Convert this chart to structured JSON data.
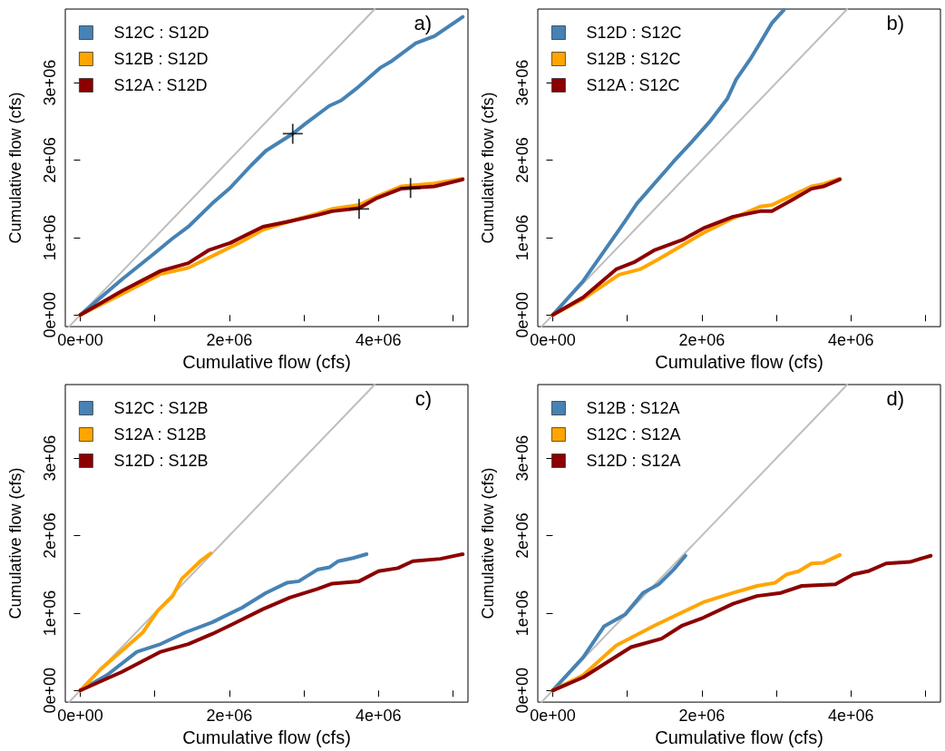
{
  "chart_data": [
    {
      "type": "line",
      "xlabel": "Cumulative flow (cfs)",
      "ylabel": "Cumulative flow (cfs)",
      "annotations": [
        "a)"
      ],
      "xlim": [
        -200000,
        5200000
      ],
      "ylim": [
        -150000,
        3950000
      ],
      "xticks": [
        {
          "value": 0,
          "label": "0e+00"
        },
        {
          "value": 1000000,
          "label": null
        },
        {
          "value": 2000000,
          "label": "2e+06"
        },
        {
          "value": 3000000,
          "label": null
        },
        {
          "value": 4000000,
          "label": "4e+06"
        },
        {
          "value": 5000000,
          "label": null
        }
      ],
      "yticks": [
        {
          "value": 0,
          "label": "0e+00"
        },
        {
          "value": 1000000,
          "label": "1e+06"
        },
        {
          "value": 2000000,
          "label": "2e+06"
        },
        {
          "value": 3000000,
          "label": "3e+06"
        }
      ],
      "legend": "top left",
      "marker": "none",
      "grid": false,
      "series": [
        {
          "color": "#bebebe",
          "x": [
            -150000,
            3950000
          ],
          "values": [
            -150000,
            3950000
          ]
        },
        {
          "name": "S12C : S12D",
          "color": "#4682b4",
          "x": [
            0,
            560000,
            1000000,
            1240000,
            1450000,
            1770000,
            2010000,
            2290000,
            2490000,
            2850000,
            3020000,
            3340000,
            3500000,
            3700000,
            4020000,
            4180000,
            4500000,
            4750000,
            5130000
          ],
          "values": [
            0,
            460000,
            800000,
            990000,
            1140000,
            1440000,
            1640000,
            1930000,
            2120000,
            2340000,
            2470000,
            2700000,
            2770000,
            2920000,
            3190000,
            3280000,
            3510000,
            3600000,
            3850000
          ]
        },
        {
          "name": "S12B : S12D",
          "color": "#ffa500",
          "x": [
            0,
            560000,
            1080000,
            1450000,
            1770000,
            2170000,
            2450000,
            2810000,
            3180000,
            3380000,
            3740000,
            3980000,
            4300000,
            4750000,
            5130000
          ],
          "values": [
            0,
            270000,
            530000,
            610000,
            760000,
            950000,
            1100000,
            1210000,
            1310000,
            1370000,
            1420000,
            1530000,
            1660000,
            1700000,
            1760000
          ]
        },
        {
          "name": "S12A : S12D",
          "color": "#8b0000",
          "x": [
            0,
            560000,
            1080000,
            1450000,
            1730000,
            2010000,
            2450000,
            2810000,
            3180000,
            3380000,
            3740000,
            3980000,
            4300000,
            4750000,
            5130000
          ],
          "values": [
            0,
            310000,
            570000,
            670000,
            840000,
            930000,
            1140000,
            1210000,
            1290000,
            1340000,
            1380000,
            1510000,
            1630000,
            1660000,
            1750000
          ]
        },
        {
          "type": "scatter",
          "marker": "cross",
          "color": "#000000",
          "x": [
            2850000,
            3740000,
            4430000
          ],
          "values": [
            2340000,
            1370000,
            1640000
          ]
        }
      ]
    },
    {
      "type": "line",
      "xlabel": "Cumulative flow (cfs)",
      "ylabel": "Cumulative flow (cfs)",
      "annotations": [
        "b)"
      ],
      "xlim": [
        -200000,
        5200000
      ],
      "ylim": [
        -150000,
        3950000
      ],
      "xticks": [
        {
          "value": 0,
          "label": "0e+00"
        },
        {
          "value": 1000000,
          "label": null
        },
        {
          "value": 2000000,
          "label": "2e+06"
        },
        {
          "value": 3000000,
          "label": null
        },
        {
          "value": 4000000,
          "label": "4e+06"
        },
        {
          "value": 5000000,
          "label": null
        }
      ],
      "yticks": [
        {
          "value": 0,
          "label": "0e+00"
        },
        {
          "value": 1000000,
          "label": "1e+06"
        },
        {
          "value": 2000000,
          "label": "2e+06"
        },
        {
          "value": 3000000,
          "label": "3e+06"
        }
      ],
      "legend": "top left",
      "marker": "none",
      "grid": false,
      "series": [
        {
          "color": "#bebebe",
          "x": [
            -150000,
            3950000
          ],
          "values": [
            -150000,
            3950000
          ]
        },
        {
          "name": "S12D : S12C",
          "color": "#4682b4",
          "x": [
            0,
            410000,
            970000,
            1130000,
            1620000,
            1860000,
            2100000,
            2340000,
            2460000,
            2660000,
            2780000,
            2940000,
            3100000
          ],
          "values": [
            0,
            440000,
            1210000,
            1440000,
            1980000,
            2230000,
            2490000,
            2790000,
            3040000,
            3320000,
            3510000,
            3770000,
            3940000
          ]
        },
        {
          "name": "S12B : S12C",
          "color": "#ffa500",
          "x": [
            0,
            410000,
            890000,
            1170000,
            1420000,
            2020000,
            2420000,
            2780000,
            2940000,
            3180000,
            3470000,
            3630000,
            3850000
          ],
          "values": [
            0,
            210000,
            520000,
            590000,
            720000,
            1060000,
            1250000,
            1400000,
            1420000,
            1530000,
            1660000,
            1690000,
            1760000
          ]
        },
        {
          "name": "S12A : S12C",
          "color": "#8b0000",
          "x": [
            0,
            410000,
            850000,
            1090000,
            1370000,
            1740000,
            2020000,
            2420000,
            2780000,
            2940000,
            3220000,
            3470000,
            3630000,
            3850000
          ],
          "values": [
            0,
            230000,
            590000,
            680000,
            840000,
            970000,
            1120000,
            1270000,
            1340000,
            1340000,
            1490000,
            1630000,
            1660000,
            1750000
          ]
        }
      ]
    },
    {
      "type": "line",
      "xlabel": "Cumulative flow (cfs)",
      "ylabel": "Cumulative flow (cfs)",
      "annotations": [
        "c)"
      ],
      "xlim": [
        -200000,
        5200000
      ],
      "ylim": [
        -150000,
        3950000
      ],
      "xticks": [
        {
          "value": 0,
          "label": "0e+00"
        },
        {
          "value": 1000000,
          "label": null
        },
        {
          "value": 2000000,
          "label": "2e+06"
        },
        {
          "value": 3000000,
          "label": null
        },
        {
          "value": 4000000,
          "label": "4e+06"
        },
        {
          "value": 5000000,
          "label": null
        }
      ],
      "yticks": [
        {
          "value": 0,
          "label": "0e+00"
        },
        {
          "value": 1000000,
          "label": "1e+06"
        },
        {
          "value": 2000000,
          "label": "2e+06"
        },
        {
          "value": 3000000,
          "label": "3e+06"
        }
      ],
      "legend": "top left",
      "marker": "none",
      "grid": false,
      "series": [
        {
          "color": "#bebebe",
          "x": [
            -150000,
            3950000
          ],
          "values": [
            -150000,
            3950000
          ]
        },
        {
          "name": "S12C : S12B",
          "color": "#4682b4",
          "x": [
            0,
            360000,
            760000,
            1080000,
            1410000,
            1770000,
            2170000,
            2490000,
            2770000,
            2930000,
            3180000,
            3340000,
            3460000,
            3660000,
            3840000
          ],
          "values": [
            0,
            200000,
            500000,
            600000,
            750000,
            880000,
            1070000,
            1260000,
            1390000,
            1410000,
            1560000,
            1590000,
            1670000,
            1710000,
            1760000
          ]
        },
        {
          "name": "S12A : S12B",
          "color": "#ffa500",
          "x": [
            0,
            280000,
            640000,
            840000,
            1040000,
            1240000,
            1360000,
            1610000,
            1750000
          ],
          "values": [
            0,
            280000,
            580000,
            750000,
            1030000,
            1220000,
            1440000,
            1670000,
            1770000
          ]
        },
        {
          "name": "S12D : S12B",
          "color": "#8b0000",
          "x": [
            0,
            560000,
            1080000,
            1450000,
            1770000,
            2010000,
            2450000,
            2810000,
            3180000,
            3380000,
            3740000,
            4000000,
            4260000,
            4460000,
            4830000,
            5130000
          ],
          "values": [
            0,
            240000,
            500000,
            600000,
            730000,
            840000,
            1050000,
            1200000,
            1310000,
            1380000,
            1410000,
            1540000,
            1580000,
            1670000,
            1700000,
            1760000
          ]
        }
      ]
    },
    {
      "type": "line",
      "xlabel": "Cumulative flow (cfs)",
      "ylabel": "Cumulative flow (cfs)",
      "annotations": [
        "d)"
      ],
      "xlim": [
        -200000,
        5200000
      ],
      "ylim": [
        -150000,
        3950000
      ],
      "xticks": [
        {
          "value": 0,
          "label": "0e+00"
        },
        {
          "value": 1000000,
          "label": null
        },
        {
          "value": 2000000,
          "label": "2e+06"
        },
        {
          "value": 3000000,
          "label": null
        },
        {
          "value": 4000000,
          "label": "4e+06"
        },
        {
          "value": 5000000,
          "label": null
        }
      ],
      "yticks": [
        {
          "value": 0,
          "label": "0e+00"
        },
        {
          "value": 1000000,
          "label": "1e+06"
        },
        {
          "value": 2000000,
          "label": "2e+06"
        },
        {
          "value": 3000000,
          "label": "3e+06"
        }
      ],
      "legend": "top left",
      "marker": "none",
      "grid": false,
      "series": [
        {
          "color": "#bebebe",
          "x": [
            -150000,
            3950000
          ],
          "values": [
            -150000,
            3950000
          ]
        },
        {
          "name": "S12B : S12A",
          "color": "#4682b4",
          "x": [
            0,
            410000,
            690000,
            970000,
            1210000,
            1420000,
            1620000,
            1780000
          ],
          "values": [
            0,
            430000,
            830000,
            980000,
            1260000,
            1370000,
            1560000,
            1740000
          ]
        },
        {
          "name": "S12C : S12A",
          "color": "#ffa500",
          "x": [
            0,
            410000,
            850000,
            1370000,
            2020000,
            2420000,
            2740000,
            2980000,
            3140000,
            3300000,
            3470000,
            3630000,
            3850000
          ],
          "values": [
            0,
            200000,
            580000,
            840000,
            1140000,
            1260000,
            1350000,
            1390000,
            1500000,
            1540000,
            1640000,
            1650000,
            1750000
          ]
        },
        {
          "name": "S12D : S12A",
          "color": "#8b0000",
          "x": [
            0,
            410000,
            1050000,
            1460000,
            1740000,
            2020000,
            2420000,
            2740000,
            3060000,
            3340000,
            3790000,
            4030000,
            4230000,
            4470000,
            4790000,
            5070000
          ],
          "values": [
            0,
            170000,
            560000,
            670000,
            840000,
            940000,
            1120000,
            1220000,
            1260000,
            1350000,
            1370000,
            1500000,
            1540000,
            1640000,
            1660000,
            1740000
          ]
        }
      ]
    }
  ]
}
